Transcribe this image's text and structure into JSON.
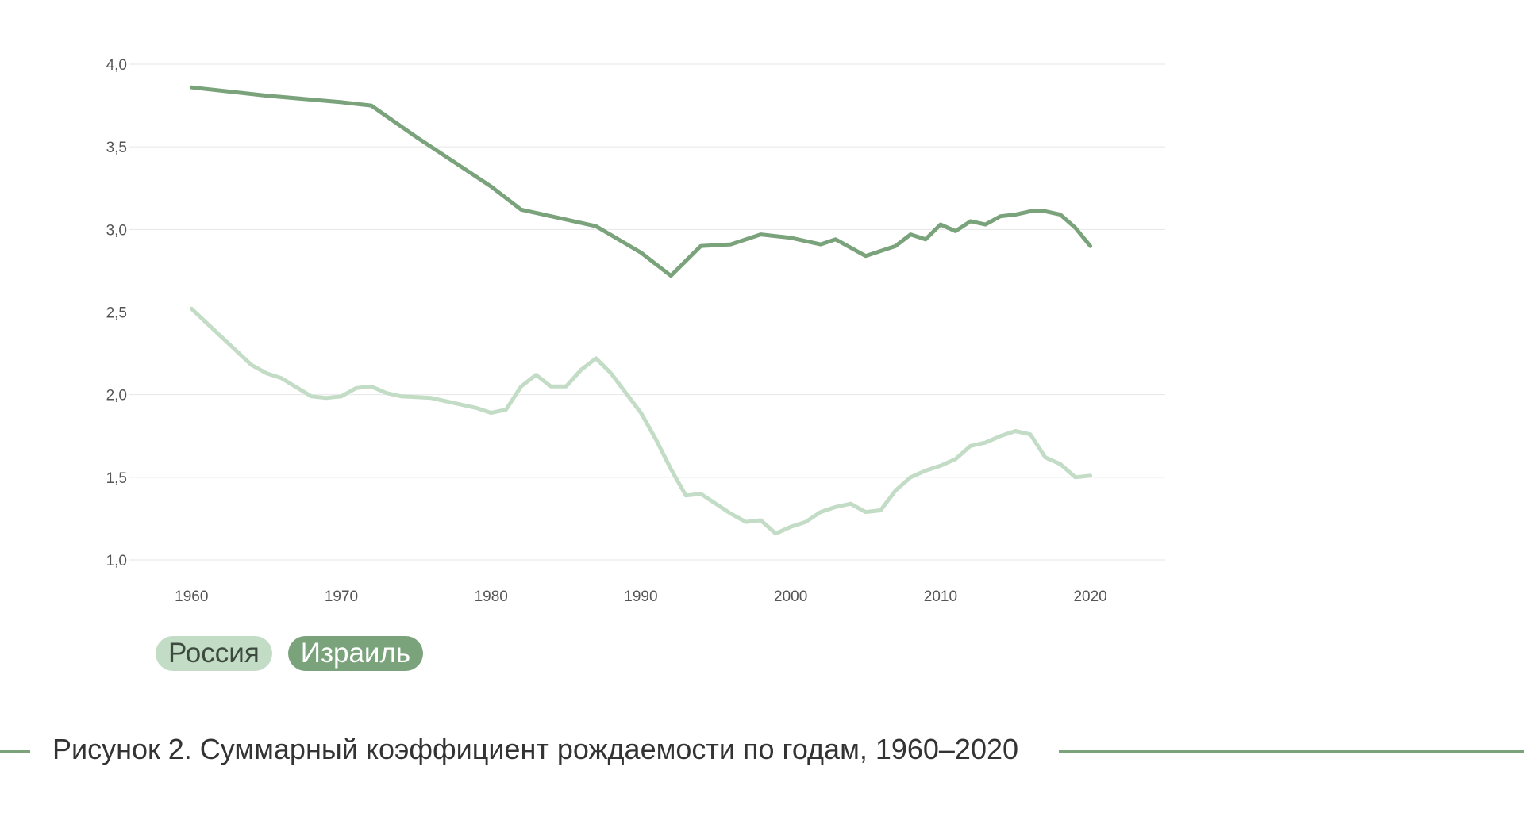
{
  "figure": {
    "caption": "Рисунок 2. Суммарный коэффициент рождаемости по годам, 1960–2020"
  },
  "legend": {
    "items": [
      {
        "label": "Россия"
      },
      {
        "label": "Израиль"
      }
    ]
  },
  "colors": {
    "russia": "#c3dcc6",
    "israel": "#7aa37c",
    "grid": "#e6e6e6",
    "caption_rule": "#7aa37c"
  },
  "chart_data": {
    "type": "line",
    "title": "",
    "xlabel": "",
    "ylabel": "",
    "xlim": [
      1955.8,
      2025
    ],
    "ylim": [
      1.0,
      4.0
    ],
    "grid": true,
    "legend_position": "bottom-left",
    "x_ticks": [
      1960,
      1970,
      1980,
      1990,
      2000,
      2010,
      2020
    ],
    "x_tick_labels": [
      "1960",
      "1970",
      "1980",
      "1990",
      "2000",
      "2010",
      "2020"
    ],
    "y_ticks": [
      1.0,
      1.5,
      2.0,
      2.5,
      3.0,
      3.5,
      4.0
    ],
    "y_tick_labels": [
      "1,0",
      "1,5",
      "2,0",
      "2,5",
      "3,0",
      "3,5",
      "4,0"
    ],
    "series": [
      {
        "name": "Россия",
        "color": "#c3dcc6",
        "points": [
          [
            1960,
            2.52
          ],
          [
            1962,
            2.35
          ],
          [
            1964,
            2.18
          ],
          [
            1965,
            2.13
          ],
          [
            1966,
            2.1
          ],
          [
            1968,
            1.99
          ],
          [
            1969,
            1.98
          ],
          [
            1970,
            1.99
          ],
          [
            1971,
            2.04
          ],
          [
            1972,
            2.05
          ],
          [
            1973,
            2.01
          ],
          [
            1974,
            1.99
          ],
          [
            1976,
            1.98
          ],
          [
            1978,
            1.94
          ],
          [
            1979,
            1.92
          ],
          [
            1980,
            1.89
          ],
          [
            1981,
            1.91
          ],
          [
            1982,
            2.05
          ],
          [
            1983,
            2.12
          ],
          [
            1984,
            2.05
          ],
          [
            1985,
            2.05
          ],
          [
            1986,
            2.15
          ],
          [
            1987,
            2.22
          ],
          [
            1988,
            2.13
          ],
          [
            1989,
            2.01
          ],
          [
            1990,
            1.89
          ],
          [
            1991,
            1.73
          ],
          [
            1992,
            1.55
          ],
          [
            1993,
            1.39
          ],
          [
            1994,
            1.4
          ],
          [
            1995,
            1.34
          ],
          [
            1996,
            1.28
          ],
          [
            1997,
            1.23
          ],
          [
            1998,
            1.24
          ],
          [
            1999,
            1.16
          ],
          [
            2000,
            1.2
          ],
          [
            2001,
            1.23
          ],
          [
            2002,
            1.29
          ],
          [
            2003,
            1.32
          ],
          [
            2004,
            1.34
          ],
          [
            2005,
            1.29
          ],
          [
            2006,
            1.3
          ],
          [
            2007,
            1.42
          ],
          [
            2008,
            1.5
          ],
          [
            2009,
            1.54
          ],
          [
            2010,
            1.57
          ],
          [
            2011,
            1.61
          ],
          [
            2012,
            1.69
          ],
          [
            2013,
            1.71
          ],
          [
            2014,
            1.75
          ],
          [
            2015,
            1.78
          ],
          [
            2016,
            1.76
          ],
          [
            2017,
            1.62
          ],
          [
            2018,
            1.58
          ],
          [
            2019,
            1.5
          ],
          [
            2020,
            1.51
          ]
        ]
      },
      {
        "name": "Израиль",
        "color": "#7aa37c",
        "points": [
          [
            1960,
            3.86
          ],
          [
            1965,
            3.81
          ],
          [
            1970,
            3.77
          ],
          [
            1972,
            3.75
          ],
          [
            1975,
            3.56
          ],
          [
            1978,
            3.38
          ],
          [
            1980,
            3.26
          ],
          [
            1982,
            3.12
          ],
          [
            1985,
            3.06
          ],
          [
            1987,
            3.02
          ],
          [
            1990,
            2.86
          ],
          [
            1992,
            2.72
          ],
          [
            1994,
            2.9
          ],
          [
            1996,
            2.91
          ],
          [
            1998,
            2.97
          ],
          [
            2000,
            2.95
          ],
          [
            2002,
            2.91
          ],
          [
            2003,
            2.94
          ],
          [
            2005,
            2.84
          ],
          [
            2007,
            2.9
          ],
          [
            2008,
            2.97
          ],
          [
            2009,
            2.94
          ],
          [
            2010,
            3.03
          ],
          [
            2011,
            2.99
          ],
          [
            2012,
            3.05
          ],
          [
            2013,
            3.03
          ],
          [
            2014,
            3.08
          ],
          [
            2015,
            3.09
          ],
          [
            2016,
            3.11
          ],
          [
            2017,
            3.11
          ],
          [
            2018,
            3.09
          ],
          [
            2019,
            3.01
          ],
          [
            2020,
            2.9
          ]
        ]
      }
    ]
  }
}
